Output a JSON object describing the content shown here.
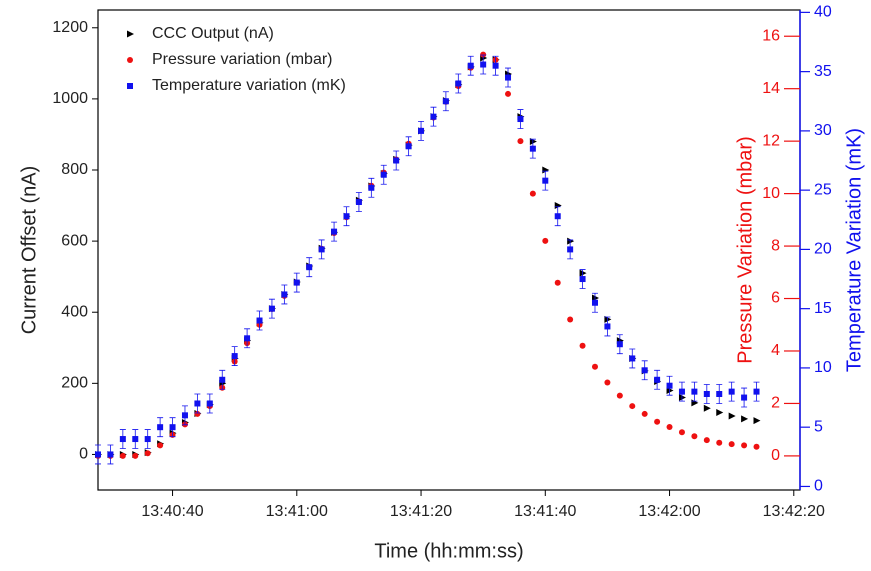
{
  "chart_data": {
    "type": "scatter",
    "xlabel": "Time (hh:mm:ss)",
    "ylabel": "Current Offset (nA)",
    "y2label": "Pressure Variation (mbar)",
    "y3label": "Temperature Variation (mK)",
    "x": [
      "13:40:28",
      "13:40:30",
      "13:40:32",
      "13:40:34",
      "13:40:36",
      "13:40:38",
      "13:40:40",
      "13:40:42",
      "13:40:44",
      "13:40:46",
      "13:40:48",
      "13:40:50",
      "13:40:52",
      "13:40:54",
      "13:40:56",
      "13:40:58",
      "13:41:00",
      "13:41:02",
      "13:41:04",
      "13:41:06",
      "13:41:08",
      "13:41:10",
      "13:41:12",
      "13:41:14",
      "13:41:16",
      "13:41:18",
      "13:41:20",
      "13:41:22",
      "13:41:24",
      "13:41:26",
      "13:41:28",
      "13:41:30",
      "13:41:32",
      "13:41:34",
      "13:41:36",
      "13:41:38",
      "13:41:40",
      "13:41:42",
      "13:41:44",
      "13:41:46",
      "13:41:48",
      "13:41:50",
      "13:41:52",
      "13:41:54",
      "13:41:56",
      "13:41:58",
      "13:42:00",
      "13:42:02",
      "13:42:04",
      "13:42:06",
      "13:42:08",
      "13:42:10",
      "13:42:12",
      "13:42:14"
    ],
    "xlim": [
      "13:40:28",
      "13:42:21"
    ],
    "xticks": [
      "13:40:40",
      "13:41:00",
      "13:41:20",
      "13:41:40",
      "13:42:00",
      "13:42:20"
    ],
    "ylim": [
      -100,
      1250
    ],
    "yticks": [
      0,
      200,
      400,
      600,
      800,
      1000,
      1200
    ],
    "y2lim": [
      -1.3,
      17
    ],
    "y2ticks": [
      0,
      2,
      4,
      6,
      8,
      10,
      12,
      14,
      16
    ],
    "y3lim": [
      -0.3,
      40.2
    ],
    "y3ticks": [
      0,
      5,
      10,
      15,
      20,
      25,
      30,
      35,
      40
    ],
    "legend": "upper left",
    "series": [
      {
        "name": "CCC Output (nA)",
        "color": "#000000",
        "marker": "triangle",
        "values": [
          0,
          0,
          0,
          0,
          5,
          30,
          60,
          90,
          115,
          140,
          200,
          270,
          320,
          370,
          410,
          450,
          485,
          530,
          580,
          625,
          670,
          715,
          755,
          790,
          830,
          870,
          910,
          950,
          995,
          1040,
          1090,
          1115,
          1110,
          1070,
          950,
          880,
          800,
          700,
          600,
          510,
          440,
          380,
          320,
          270,
          235,
          205,
          180,
          160,
          145,
          130,
          118,
          108,
          100,
          95
        ]
      },
      {
        "name": "Pressure variation (mbar)",
        "color": "#ee1111",
        "marker": "circle",
        "axis": "y2",
        "values": [
          0,
          0,
          0,
          0,
          0.1,
          0.4,
          0.8,
          1.2,
          1.6,
          1.9,
          2.6,
          3.6,
          4.3,
          5.0,
          5.6,
          6.1,
          6.6,
          7.2,
          7.9,
          8.5,
          9.1,
          9.7,
          10.3,
          10.8,
          11.3,
          11.9,
          12.4,
          12.9,
          13.5,
          14.1,
          14.8,
          15.3,
          15.1,
          13.8,
          12.0,
          10.0,
          8.2,
          6.6,
          5.2,
          4.2,
          3.4,
          2.8,
          2.3,
          1.9,
          1.6,
          1.3,
          1.1,
          0.9,
          0.75,
          0.6,
          0.5,
          0.45,
          0.4,
          0.35
        ]
      },
      {
        "name": "Temperature variation (mK)",
        "color": "#1111ee",
        "marker": "square",
        "axis": "y3",
        "values": [
          2.7,
          2.7,
          4.0,
          4.0,
          4.0,
          5.0,
          5.0,
          6.0,
          7.0,
          7.0,
          9.0,
          11.0,
          12.5,
          14.0,
          15.0,
          16.2,
          17.2,
          18.5,
          20.0,
          21.5,
          22.8,
          24.0,
          25.2,
          26.3,
          27.5,
          28.7,
          30.0,
          31.2,
          32.5,
          34.0,
          35.5,
          35.6,
          35.5,
          34.5,
          31.0,
          28.5,
          25.8,
          22.8,
          20.0,
          17.5,
          15.5,
          13.5,
          12.0,
          10.8,
          9.8,
          9.0,
          8.5,
          8.0,
          8.0,
          7.8,
          7.8,
          8.0,
          7.5,
          8.0
        ],
        "errors": [
          0.8,
          0.8,
          0.8,
          0.8,
          0.8,
          0.8,
          0.8,
          0.8,
          0.8,
          0.8,
          0.8,
          0.8,
          0.8,
          0.8,
          0.8,
          0.8,
          0.8,
          0.8,
          0.8,
          0.8,
          0.8,
          0.8,
          0.8,
          0.8,
          0.8,
          0.8,
          0.8,
          0.8,
          0.8,
          0.8,
          0.8,
          0.8,
          0.8,
          0.8,
          0.8,
          0.8,
          0.8,
          0.8,
          0.8,
          0.8,
          0.8,
          0.8,
          0.8,
          0.8,
          0.8,
          0.8,
          0.8,
          0.8,
          0.8,
          0.8,
          0.8,
          0.8,
          0.8,
          0.8
        ]
      }
    ]
  }
}
